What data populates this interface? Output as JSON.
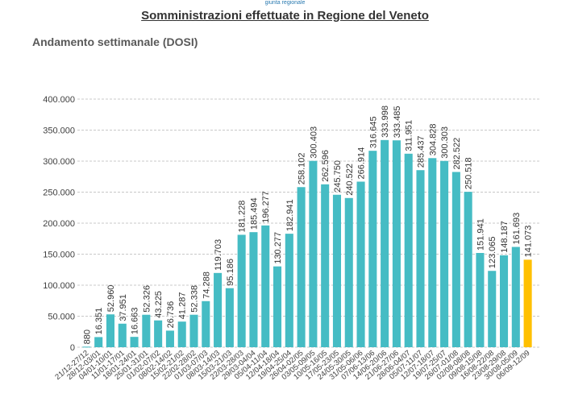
{
  "header": {
    "logo_caption": "giunta regionale",
    "title": "Somministrazioni effettuate in  Regione del Veneto"
  },
  "chart_data": {
    "type": "bar",
    "title": "Andamento settimanale (DOSI)",
    "xlabel": "",
    "ylabel": "",
    "ylim": [
      0,
      400000
    ],
    "yticks": [
      0,
      50000,
      100000,
      150000,
      200000,
      250000,
      300000,
      350000,
      400000
    ],
    "ytick_labels": [
      "0",
      "50.000",
      "100.000",
      "150.000",
      "200.000",
      "250.000",
      "300.000",
      "350.000",
      "400.000"
    ],
    "grid": "horizontal dashed",
    "legend": "none",
    "colors": {
      "default": "#45bcc4",
      "highlight": "#ffc000"
    },
    "highlight_index": 37,
    "categories": [
      "21/12-27/12",
      "28/12-03/01",
      "04/01-10/01",
      "11/01-17/01",
      "18/01-24/01",
      "25/01-31/01",
      "01/02-07/02",
      "08/02-14/02",
      "15/02-21/02",
      "22/02-28/02",
      "01/03-07/03",
      "08/03-14/03",
      "15/03-21/03",
      "22/03-28/03",
      "29/03-04/04",
      "05/04-11/04",
      "12/04-18/04",
      "19/04-25/04",
      "26/04-02/05",
      "03/05-09/05",
      "10/05-16/05",
      "17/05-23/05",
      "24/05-30/05",
      "31/05-06/06",
      "07/06-13/06",
      "14/06-20/06",
      "21/06-27/06",
      "28/06-04/07",
      "05/07-11/07",
      "12/07-18/07",
      "19/07-25/07",
      "26/07-01/08",
      "02/08-08/08",
      "09/08-15/08",
      "16/08-22/08",
      "23/08-29/08",
      "30/08-05/09",
      "06/09-12/09"
    ],
    "values": [
      880,
      16351,
      52960,
      37951,
      16663,
      52326,
      43225,
      26736,
      41287,
      52338,
      74288,
      119703,
      95186,
      181228,
      185494,
      196277,
      130277,
      182941,
      258102,
      300403,
      262596,
      245750,
      240522,
      266914,
      316645,
      333998,
      333485,
      311951,
      285437,
      304828,
      300303,
      282522,
      250518,
      151941,
      123065,
      148187,
      161693,
      141073
    ],
    "value_labels": [
      "880",
      "16.351",
      "52.960",
      "37.951",
      "16.663",
      "52.326",
      "43.225",
      "26.736",
      "41.287",
      "52.338",
      "74.288",
      "119.703",
      "95.186",
      "181.228",
      "185.494",
      "196.277",
      "130.277",
      "182.941",
      "258.102",
      "300.403",
      "262.596",
      "245.750",
      "240.522",
      "266.914",
      "316.645",
      "333.998",
      "333.485",
      "311.951",
      "285.437",
      "304.828",
      "300.303",
      "282.522",
      "250.518",
      "151.941",
      "123.065",
      "148.187",
      "161.693",
      "141.073"
    ]
  }
}
